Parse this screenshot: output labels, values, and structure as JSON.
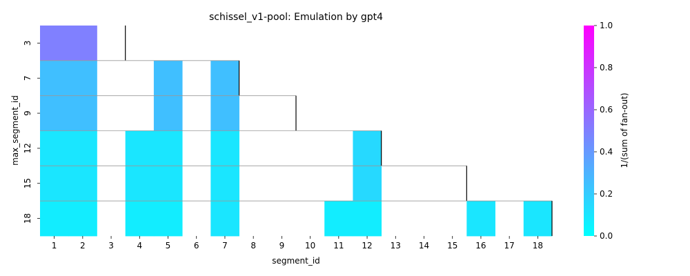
{
  "chart_data": {
    "type": "heatmap",
    "title": "schissel_v1-pool: Emulation by gpt4",
    "xlabel": "segment_id",
    "ylabel": "max_segment_id",
    "x_categories": [
      "1",
      "2",
      "3",
      "4",
      "5",
      "6",
      "7",
      "8",
      "9",
      "10",
      "11",
      "12",
      "13",
      "14",
      "15",
      "16",
      "17",
      "18"
    ],
    "y_categories": [
      "3",
      "7",
      "9",
      "12",
      "15",
      "18"
    ],
    "cells": [
      {
        "x": "1",
        "y": "3",
        "value": 0.5
      },
      {
        "x": "2",
        "y": "3",
        "value": 0.5
      },
      {
        "x": "1",
        "y": "7",
        "value": 0.25
      },
      {
        "x": "2",
        "y": "7",
        "value": 0.25
      },
      {
        "x": "5",
        "y": "7",
        "value": 0.25
      },
      {
        "x": "7",
        "y": "7",
        "value": 0.25
      },
      {
        "x": "1",
        "y": "9",
        "value": 0.25
      },
      {
        "x": "2",
        "y": "9",
        "value": 0.25
      },
      {
        "x": "5",
        "y": "9",
        "value": 0.25
      },
      {
        "x": "7",
        "y": "9",
        "value": 0.25
      },
      {
        "x": "1",
        "y": "12",
        "value": 0.1
      },
      {
        "x": "2",
        "y": "12",
        "value": 0.1
      },
      {
        "x": "4",
        "y": "12",
        "value": 0.1
      },
      {
        "x": "5",
        "y": "12",
        "value": 0.1
      },
      {
        "x": "7",
        "y": "12",
        "value": 0.1
      },
      {
        "x": "12",
        "y": "12",
        "value": 0.15
      },
      {
        "x": "1",
        "y": "15",
        "value": 0.1
      },
      {
        "x": "2",
        "y": "15",
        "value": 0.1
      },
      {
        "x": "4",
        "y": "15",
        "value": 0.1
      },
      {
        "x": "5",
        "y": "15",
        "value": 0.1
      },
      {
        "x": "7",
        "y": "15",
        "value": 0.1
      },
      {
        "x": "12",
        "y": "15",
        "value": 0.15
      },
      {
        "x": "1",
        "y": "18",
        "value": 0.07
      },
      {
        "x": "2",
        "y": "18",
        "value": 0.07
      },
      {
        "x": "4",
        "y": "18",
        "value": 0.07
      },
      {
        "x": "5",
        "y": "18",
        "value": 0.07
      },
      {
        "x": "7",
        "y": "18",
        "value": 0.1
      },
      {
        "x": "11",
        "y": "18",
        "value": 0.07
      },
      {
        "x": "12",
        "y": "18",
        "value": 0.07
      },
      {
        "x": "16",
        "y": "18",
        "value": 0.1
      },
      {
        "x": "18",
        "y": "18",
        "value": 0.1
      }
    ],
    "boundary_markers": [
      {
        "after_x": "3",
        "y": "3"
      },
      {
        "after_x": "7",
        "y": "7"
      },
      {
        "after_x": "9",
        "y": "9"
      },
      {
        "after_x": "12",
        "y": "12"
      },
      {
        "after_x": "15",
        "y": "15"
      },
      {
        "after_x": "18",
        "y": "18"
      }
    ],
    "colorbar": {
      "label": "1/(sum of fan-out)",
      "range": [
        0,
        1
      ],
      "ticks": [
        "0.0",
        "0.2",
        "0.4",
        "0.6",
        "0.8",
        "1.0"
      ],
      "colormap": "cool",
      "color_low": "#00ffff",
      "color_high": "#ff00ff"
    },
    "colors": {
      "boundary_horizontal": "#999999",
      "boundary_vertical": "#000000"
    }
  }
}
